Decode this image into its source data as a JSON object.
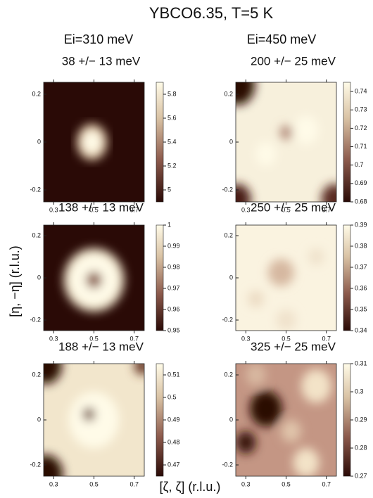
{
  "title": "YBCO6.35, T=5 K",
  "column_titles": [
    "Ei=310 meV",
    "Ei=450 meV"
  ],
  "xlabel": "[ζ, ζ] (r.l.u.)",
  "ylabel": "[η, −η] (r.l.u.)",
  "chart_data": [
    {
      "type": "heatmap",
      "title": "38 +/− 13 meV",
      "xlim": [
        0.25,
        0.75
      ],
      "xticks": [
        0.3,
        0.5,
        0.7
      ],
      "ylim": [
        -0.25,
        0.25
      ],
      "yticks": [
        -0.2,
        0,
        0.2
      ],
      "clim": [
        4.9,
        5.9
      ],
      "cticks": [
        5,
        5.2,
        5.4,
        5.6,
        5.8
      ]
    },
    {
      "type": "heatmap",
      "title": "200 +/− 25 meV",
      "xlim": [
        0.25,
        0.75
      ],
      "xticks": [
        0.3,
        0.5,
        0.7
      ],
      "ylim": [
        -0.25,
        0.25
      ],
      "yticks": [
        -0.2,
        0,
        0.2
      ],
      "clim": [
        0.68,
        0.745
      ],
      "cticks": [
        0.68,
        0.69,
        0.7,
        0.71,
        0.72,
        0.73,
        0.74
      ]
    },
    {
      "type": "heatmap",
      "title": "138 +/− 13 meV",
      "xlim": [
        0.25,
        0.75
      ],
      "xticks": [
        0.3,
        0.5,
        0.7
      ],
      "ylim": [
        -0.25,
        0.25
      ],
      "yticks": [
        -0.2,
        0,
        0.2
      ],
      "clim": [
        0.95,
        1
      ],
      "cticks": [
        0.95,
        0.96,
        0.97,
        0.98,
        0.99,
        1
      ]
    },
    {
      "type": "heatmap",
      "title": "250 +/− 25 meV",
      "xlim": [
        0.25,
        0.75
      ],
      "xticks": [
        0.3,
        0.5,
        0.7
      ],
      "ylim": [
        -0.25,
        0.25
      ],
      "yticks": [
        -0.2,
        0,
        0.2
      ],
      "clim": [
        0.34,
        0.39
      ],
      "cticks": [
        0.34,
        0.35,
        0.36,
        0.37,
        0.38,
        0.39
      ]
    },
    {
      "type": "heatmap",
      "title": "188 +/− 13 meV",
      "xlim": [
        0.25,
        0.75
      ],
      "xticks": [
        0.3,
        0.5,
        0.7
      ],
      "ylim": [
        -0.25,
        0.25
      ],
      "yticks": [
        -0.2,
        0,
        0.2
      ],
      "clim": [
        0.465,
        0.515
      ],
      "cticks": [
        0.47,
        0.48,
        0.49,
        0.5,
        0.51
      ]
    },
    {
      "type": "heatmap",
      "title": "325 +/− 25 meV",
      "xlim": [
        0.25,
        0.75
      ],
      "xticks": [
        0.3,
        0.5,
        0.7
      ],
      "ylim": [
        -0.25,
        0.25
      ],
      "yticks": [
        -0.2,
        0,
        0.2
      ],
      "clim": [
        0.27,
        0.31
      ],
      "cticks": [
        0.27,
        0.28,
        0.29,
        0.3,
        0.31
      ]
    }
  ]
}
